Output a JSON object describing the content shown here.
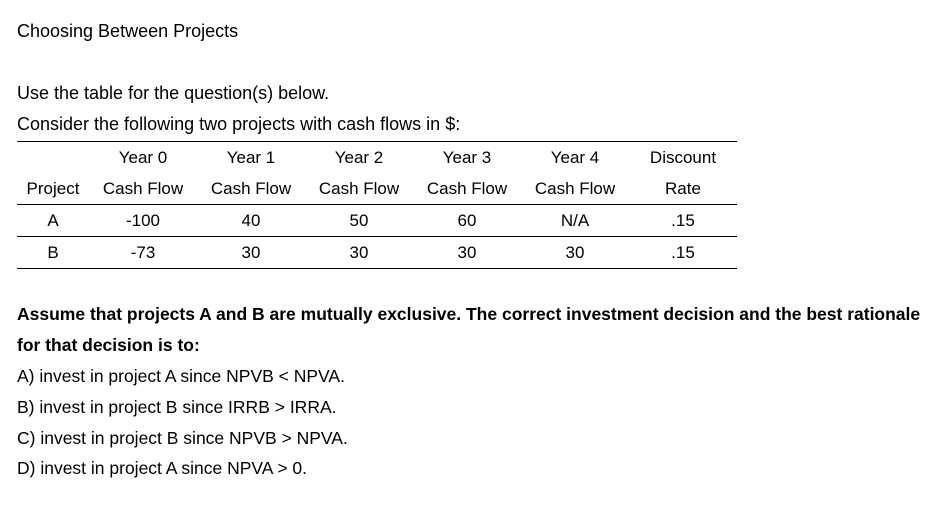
{
  "header": {
    "title": "Choosing Between Projects"
  },
  "intro": [
    "Use the table for the question(s) below.",
    "Consider the following two projects with cash flows in $:"
  ],
  "table": {
    "columns": [
      {
        "bottom": "Project"
      },
      {
        "top": "Year 0",
        "bottom": "Cash Flow"
      },
      {
        "top": "Year 1",
        "bottom": "Cash Flow"
      },
      {
        "top": "Year 2",
        "bottom": "Cash Flow"
      },
      {
        "top": "Year 3",
        "bottom": "Cash Flow"
      },
      {
        "top": "Year 4",
        "bottom": "Cash Flow"
      },
      {
        "top": "Discount",
        "bottom": "Rate"
      }
    ],
    "rows": [
      [
        "A",
        "-100",
        "40",
        "50",
        "60",
        "N/A",
        ".15"
      ],
      [
        "B",
        "-73",
        "30",
        "30",
        "30",
        "30",
        ".15"
      ]
    ]
  },
  "question": "Assume that projects A and B are mutually exclusive. The correct investment decision and the best rationale for that decision is to:",
  "options": [
    "A) invest in project A since NPVB < NPVA.",
    "B) invest in project B since IRRB > IRRA.",
    "C) invest in project B since NPVB > NPVA.",
    "D) invest in project A since NPVA > 0."
  ]
}
